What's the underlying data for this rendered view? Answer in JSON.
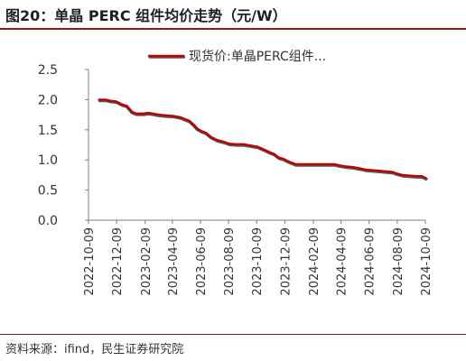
{
  "title": "图20：单晶 PERC 组件均价走势（元/W）",
  "source": "资料来源：ifind，民生证券研究院",
  "chart_data": {
    "type": "line",
    "legend_position": "top",
    "grid": false,
    "y_ticks": [
      "0.0",
      "0.5",
      "1.0",
      "1.5",
      "2.0",
      "2.5"
    ],
    "ylim": [
      0,
      2.5
    ],
    "x_ticks": [
      "2022-10-09",
      "2022-12-09",
      "2023-02-09",
      "2023-04-09",
      "2023-06-09",
      "2023-08-09",
      "2023-10-09",
      "2023-12-09",
      "2024-02-09",
      "2024-04-09",
      "2024-06-09",
      "2024-08-09",
      "2024-10-09"
    ],
    "xlim": [
      "2022-10-09",
      "2024-10-09"
    ],
    "series": [
      {
        "name": "现货价:单晶PERC组件...",
        "color": "#c00000",
        "x": [
          "2022-11-01",
          "2022-11-15",
          "2022-11-25",
          "2022-12-08",
          "2022-12-20",
          "2022-12-30",
          "2023-01-10",
          "2023-01-20",
          "2023-02-05",
          "2023-02-15",
          "2023-02-25",
          "2023-03-10",
          "2023-03-25",
          "2023-04-10",
          "2023-04-25",
          "2023-05-05",
          "2023-05-15",
          "2023-05-25",
          "2023-06-01",
          "2023-06-10",
          "2023-06-20",
          "2023-07-01",
          "2023-07-15",
          "2023-07-30",
          "2023-08-10",
          "2023-08-25",
          "2023-09-10",
          "2023-09-25",
          "2023-10-10",
          "2023-10-25",
          "2023-11-05",
          "2023-11-15",
          "2023-11-25",
          "2023-12-05",
          "2023-12-15",
          "2024-01-01",
          "2024-01-15",
          "2024-02-09",
          "2024-02-25",
          "2024-03-10",
          "2024-03-25",
          "2024-04-05",
          "2024-04-20",
          "2024-05-05",
          "2024-05-20",
          "2024-06-01",
          "2024-06-15",
          "2024-07-01",
          "2024-07-15",
          "2024-07-30",
          "2024-08-05",
          "2024-08-20",
          "2024-09-05",
          "2024-09-20",
          "2024-10-01",
          "2024-10-09"
        ],
        "values": [
          2.0,
          2.0,
          1.98,
          1.97,
          1.92,
          1.9,
          1.8,
          1.77,
          1.77,
          1.78,
          1.77,
          1.75,
          1.74,
          1.73,
          1.71,
          1.68,
          1.65,
          1.58,
          1.52,
          1.48,
          1.45,
          1.38,
          1.33,
          1.3,
          1.27,
          1.26,
          1.26,
          1.24,
          1.22,
          1.17,
          1.13,
          1.1,
          1.04,
          1.02,
          0.98,
          0.93,
          0.93,
          0.93,
          0.93,
          0.93,
          0.93,
          0.91,
          0.89,
          0.88,
          0.86,
          0.84,
          0.83,
          0.82,
          0.81,
          0.8,
          0.78,
          0.75,
          0.74,
          0.73,
          0.73,
          0.7
        ]
      }
    ]
  }
}
